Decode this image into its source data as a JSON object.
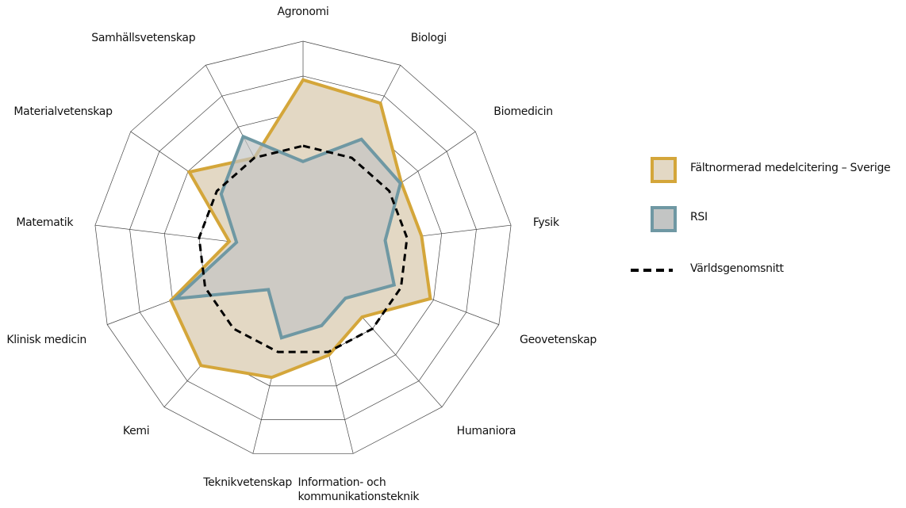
{
  "chart_data": {
    "type": "radar",
    "categories": [
      "Agronomi",
      "Biologi",
      "Biomedicin",
      "Fysik",
      "Geovetenskap",
      "Humaniora",
      "Information- och\nkommunikationsteknik",
      "Teknikvetenskap",
      "Kemi",
      "Klinisk medicin",
      "Matematik",
      "Materialvetenskap",
      "Samhällsvetenskap"
    ],
    "series": [
      {
        "name": "Fältnormerad medelcitering – Sverige",
        "color": "#d4a63a",
        "fill": "#e3d8c4",
        "values": [
          1.63,
          1.59,
          1.14,
          1.14,
          1.3,
          0.85,
          1.03,
          1.25,
          1.47,
          1.35,
          0.71,
          1.32,
          1.0
        ]
      },
      {
        "name": "RSI",
        "color": "#6f98a3",
        "fill": "#c3c5c4",
        "values": [
          0.85,
          1.2,
          1.13,
          0.79,
          0.93,
          0.61,
          0.74,
          0.86,
          0.5,
          1.3,
          0.64,
          0.95,
          1.23
        ]
      },
      {
        "name": "Världsgenomsnitt",
        "color": "#000000",
        "dashed": true,
        "values": [
          1,
          1,
          1,
          1,
          1,
          1,
          1,
          1,
          1,
          1,
          1,
          1,
          1
        ]
      }
    ],
    "ylim": [
      0,
      2
    ],
    "yticks": [
      0.333,
      0.667,
      1,
      1.333,
      1.667,
      2
    ]
  }
}
